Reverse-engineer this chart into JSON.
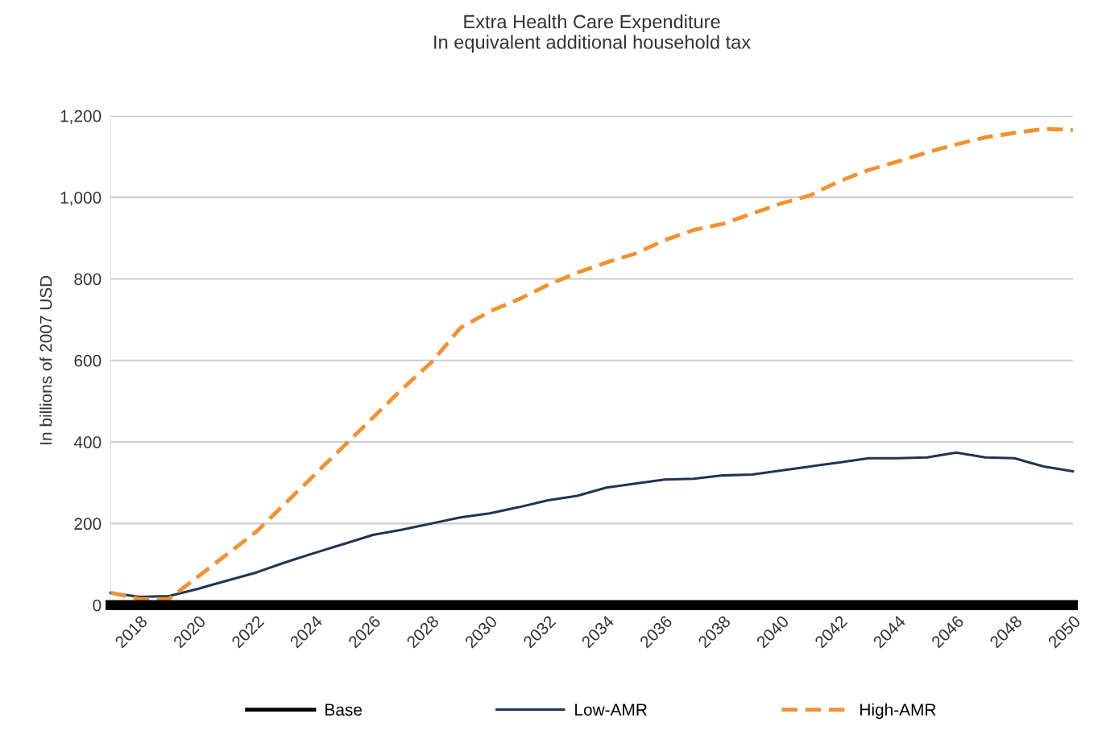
{
  "chart_data": {
    "type": "line",
    "title": "Extra Health Care Expenditure\nIn equivalent additional household tax",
    "ylabel": "In billions of 2007 USD",
    "x": [
      2017,
      2018,
      2019,
      2020,
      2021,
      2022,
      2023,
      2024,
      2025,
      2026,
      2027,
      2028,
      2029,
      2030,
      2031,
      2032,
      2033,
      2034,
      2035,
      2036,
      2037,
      2038,
      2039,
      2040,
      2041,
      2042,
      2043,
      2044,
      2045,
      2046,
      2047,
      2048,
      2049,
      2050
    ],
    "series": [
      {
        "name": "Base",
        "color": "#000000",
        "line_style": "solid",
        "values": [
          0,
          0,
          0,
          0,
          0,
          0,
          0,
          0,
          0,
          0,
          0,
          0,
          0,
          0,
          0,
          0,
          0,
          0,
          0,
          0,
          0,
          0,
          0,
          0,
          0,
          0,
          0,
          0,
          0,
          0,
          0,
          0,
          0,
          0
        ]
      },
      {
        "name": "Low-AMR",
        "color": "#1f3553",
        "line_style": "solid",
        "values": [
          30,
          20,
          22,
          40,
          60,
          80,
          105,
          128,
          150,
          172,
          185,
          200,
          215,
          225,
          240,
          257,
          268,
          288,
          298,
          308,
          310,
          318,
          320,
          330,
          340,
          350,
          360,
          360,
          362,
          374,
          362,
          360,
          340,
          328
        ]
      },
      {
        "name": "High-AMR",
        "color": "#f39130",
        "line_style": "dashed",
        "values": [
          30,
          15,
          15,
          70,
          125,
          180,
          250,
          320,
          390,
          460,
          530,
          595,
          680,
          720,
          750,
          785,
          815,
          840,
          862,
          895,
          920,
          935,
          960,
          985,
          1005,
          1040,
          1067,
          1088,
          1110,
          1130,
          1147,
          1158,
          1168,
          1165
        ]
      }
    ],
    "xlim": [
      2017,
      2050
    ],
    "xticks": [
      2018,
      2020,
      2022,
      2024,
      2026,
      2028,
      2030,
      2032,
      2034,
      2036,
      2038,
      2040,
      2042,
      2044,
      2046,
      2048,
      2050
    ],
    "ylim": [
      0,
      1200
    ],
    "yticks": [
      {
        "value": 0,
        "label": "0"
      },
      {
        "value": 200,
        "label": "200"
      },
      {
        "value": 400,
        "label": "400"
      },
      {
        "value": 600,
        "label": "600"
      },
      {
        "value": 800,
        "label": "800"
      },
      {
        "value": 1000,
        "label": "1,000"
      },
      {
        "value": 1200,
        "label": "1,200"
      }
    ],
    "grid": "y",
    "legend": "bottom",
    "marker": "none"
  }
}
